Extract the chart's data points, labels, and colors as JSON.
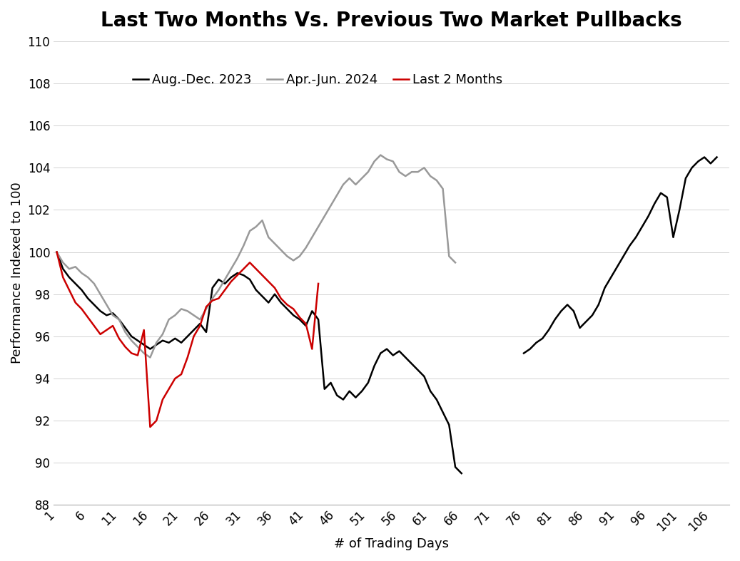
{
  "title": "Last Two Months Vs. Previous Two Market Pullbacks",
  "xlabel": "# of Trading Days",
  "ylabel": "Performance Indexed to 100",
  "ylim": [
    88,
    110
  ],
  "yticks": [
    88,
    90,
    92,
    94,
    96,
    98,
    100,
    102,
    104,
    106,
    108,
    110
  ],
  "xticks": [
    1,
    6,
    11,
    16,
    21,
    26,
    31,
    36,
    41,
    46,
    51,
    56,
    61,
    66,
    71,
    76,
    81,
    86,
    91,
    96,
    101,
    106
  ],
  "xlim": [
    0.5,
    109
  ],
  "series": {
    "aug_dec_2023": {
      "label": "Aug.-Dec. 2023",
      "color": "#000000",
      "linewidth": 1.8,
      "data": [
        100.0,
        99.2,
        98.8,
        98.5,
        98.2,
        97.8,
        97.5,
        97.2,
        97.0,
        97.1,
        96.8,
        96.4,
        96.0,
        95.8,
        95.6,
        95.4,
        95.6,
        95.8,
        95.7,
        95.9,
        95.7,
        96.0,
        96.3,
        96.6,
        96.2,
        98.3,
        98.7,
        98.5,
        98.8,
        99.0,
        98.9,
        98.7,
        98.2,
        97.9,
        97.6,
        98.0,
        97.6,
        97.3,
        97.0,
        96.8,
        96.5,
        97.2,
        96.8,
        93.5,
        93.8,
        93.2,
        93.0,
        93.4,
        93.1,
        93.4,
        93.8,
        94.6,
        95.2,
        95.4,
        95.1,
        95.3,
        95.0,
        94.7,
        94.4,
        94.1,
        93.4,
        93.0,
        92.4,
        91.8,
        89.8,
        89.5,
        null,
        null,
        null,
        null,
        null,
        null,
        null,
        null,
        null,
        95.2,
        95.4,
        95.7,
        95.9,
        96.3,
        96.8,
        97.2,
        97.5,
        97.2,
        96.4,
        96.7,
        97.0,
        97.5,
        98.3,
        98.8,
        99.3,
        99.8,
        100.3,
        100.7,
        101.2,
        101.7,
        102.3,
        102.8,
        102.6,
        100.7,
        102.0,
        103.5,
        104.0,
        104.3,
        104.5,
        104.2,
        104.5
      ]
    },
    "apr_jun_2024": {
      "label": "Apr.-Jun. 2024",
      "color": "#999999",
      "linewidth": 1.8,
      "data": [
        100.0,
        99.5,
        99.2,
        99.3,
        99.0,
        98.8,
        98.5,
        98.0,
        97.5,
        97.0,
        96.8,
        96.2,
        95.8,
        95.5,
        95.2,
        95.0,
        95.7,
        96.1,
        96.8,
        97.0,
        97.3,
        97.2,
        97.0,
        96.8,
        97.3,
        97.8,
        98.2,
        98.7,
        99.2,
        99.7,
        100.3,
        101.0,
        101.2,
        101.5,
        100.7,
        100.4,
        100.1,
        99.8,
        99.6,
        99.8,
        100.2,
        100.7,
        101.2,
        101.7,
        102.2,
        102.7,
        103.2,
        103.5,
        103.2,
        103.5,
        103.8,
        104.3,
        104.6,
        104.4,
        104.3,
        103.8,
        103.6,
        103.8,
        103.8,
        104.0,
        103.6,
        103.4,
        103.0,
        99.8,
        99.5,
        null,
        null,
        null,
        null,
        null,
        null,
        null,
        null,
        null,
        null,
        null,
        null,
        null,
        null,
        null,
        null,
        null,
        null,
        null,
        null,
        null,
        null,
        null,
        null,
        null,
        null,
        null,
        null,
        null,
        null,
        null,
        null,
        null,
        null,
        null,
        null,
        null,
        null,
        null,
        null,
        null,
        null,
        null
      ]
    },
    "last_2_months": {
      "label": "Last 2 Months",
      "color": "#cc0000",
      "linewidth": 1.8,
      "data": [
        100.0,
        98.8,
        98.2,
        97.6,
        97.3,
        96.9,
        96.5,
        96.1,
        96.3,
        96.5,
        95.9,
        95.5,
        95.2,
        95.1,
        96.3,
        91.7,
        92.0,
        93.0,
        93.5,
        94.0,
        94.2,
        95.0,
        96.0,
        96.5,
        97.4,
        97.7,
        97.8,
        98.2,
        98.6,
        98.9,
        99.2,
        99.5,
        99.2,
        98.9,
        98.6,
        98.3,
        97.8,
        97.5,
        97.3,
        96.9,
        96.6,
        95.4,
        98.5,
        null,
        null,
        null,
        null,
        null,
        null,
        null,
        null,
        null,
        null,
        null,
        null,
        null,
        null,
        null,
        null,
        null,
        null,
        null,
        null,
        null,
        null,
        null,
        null,
        null,
        null,
        null,
        null,
        null,
        null,
        null,
        null,
        null,
        null,
        null,
        null,
        null,
        null,
        null,
        null,
        null,
        null,
        null,
        null,
        null,
        null,
        null,
        null,
        null,
        null,
        null,
        null,
        null,
        null,
        null,
        null,
        null,
        null,
        null,
        null,
        null,
        null,
        null,
        null,
        null,
        null,
        null,
        null,
        null
      ]
    }
  },
  "background_color": "#ffffff",
  "title_fontsize": 20,
  "axis_fontsize": 13,
  "tick_fontsize": 12,
  "legend_fontsize": 13
}
